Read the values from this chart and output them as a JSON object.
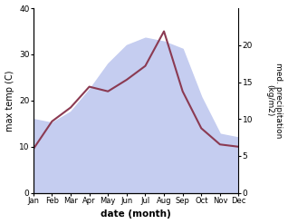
{
  "months": [
    "Jan",
    "Feb",
    "Mar",
    "Apr",
    "May",
    "Jun",
    "Jul",
    "Aug",
    "Sep",
    "Oct",
    "Nov",
    "Dec"
  ],
  "month_positions": [
    0,
    1,
    2,
    3,
    4,
    5,
    6,
    7,
    8,
    9,
    10,
    11
  ],
  "max_temp": [
    9.5,
    15.5,
    18.5,
    23.0,
    22.0,
    24.5,
    27.5,
    35.0,
    22.0,
    14.0,
    10.5,
    10.0
  ],
  "precipitation": [
    10.0,
    9.5,
    11.0,
    14.0,
    17.5,
    20.0,
    21.0,
    20.5,
    19.5,
    13.0,
    8.0,
    7.5
  ],
  "temp_color": "#8B3A52",
  "precip_fill_color": "#c5cdf0",
  "ylabel_left": "max temp (C)",
  "ylabel_right": "med. precipitation\n(kg/m2)",
  "xlabel": "date (month)",
  "ylim_left": [
    0,
    40
  ],
  "ylim_right": [
    0,
    25
  ],
  "yticks_left": [
    0,
    10,
    20,
    30,
    40
  ],
  "yticks_right": [
    0,
    5,
    10,
    15,
    20
  ],
  "background_color": "#ffffff"
}
